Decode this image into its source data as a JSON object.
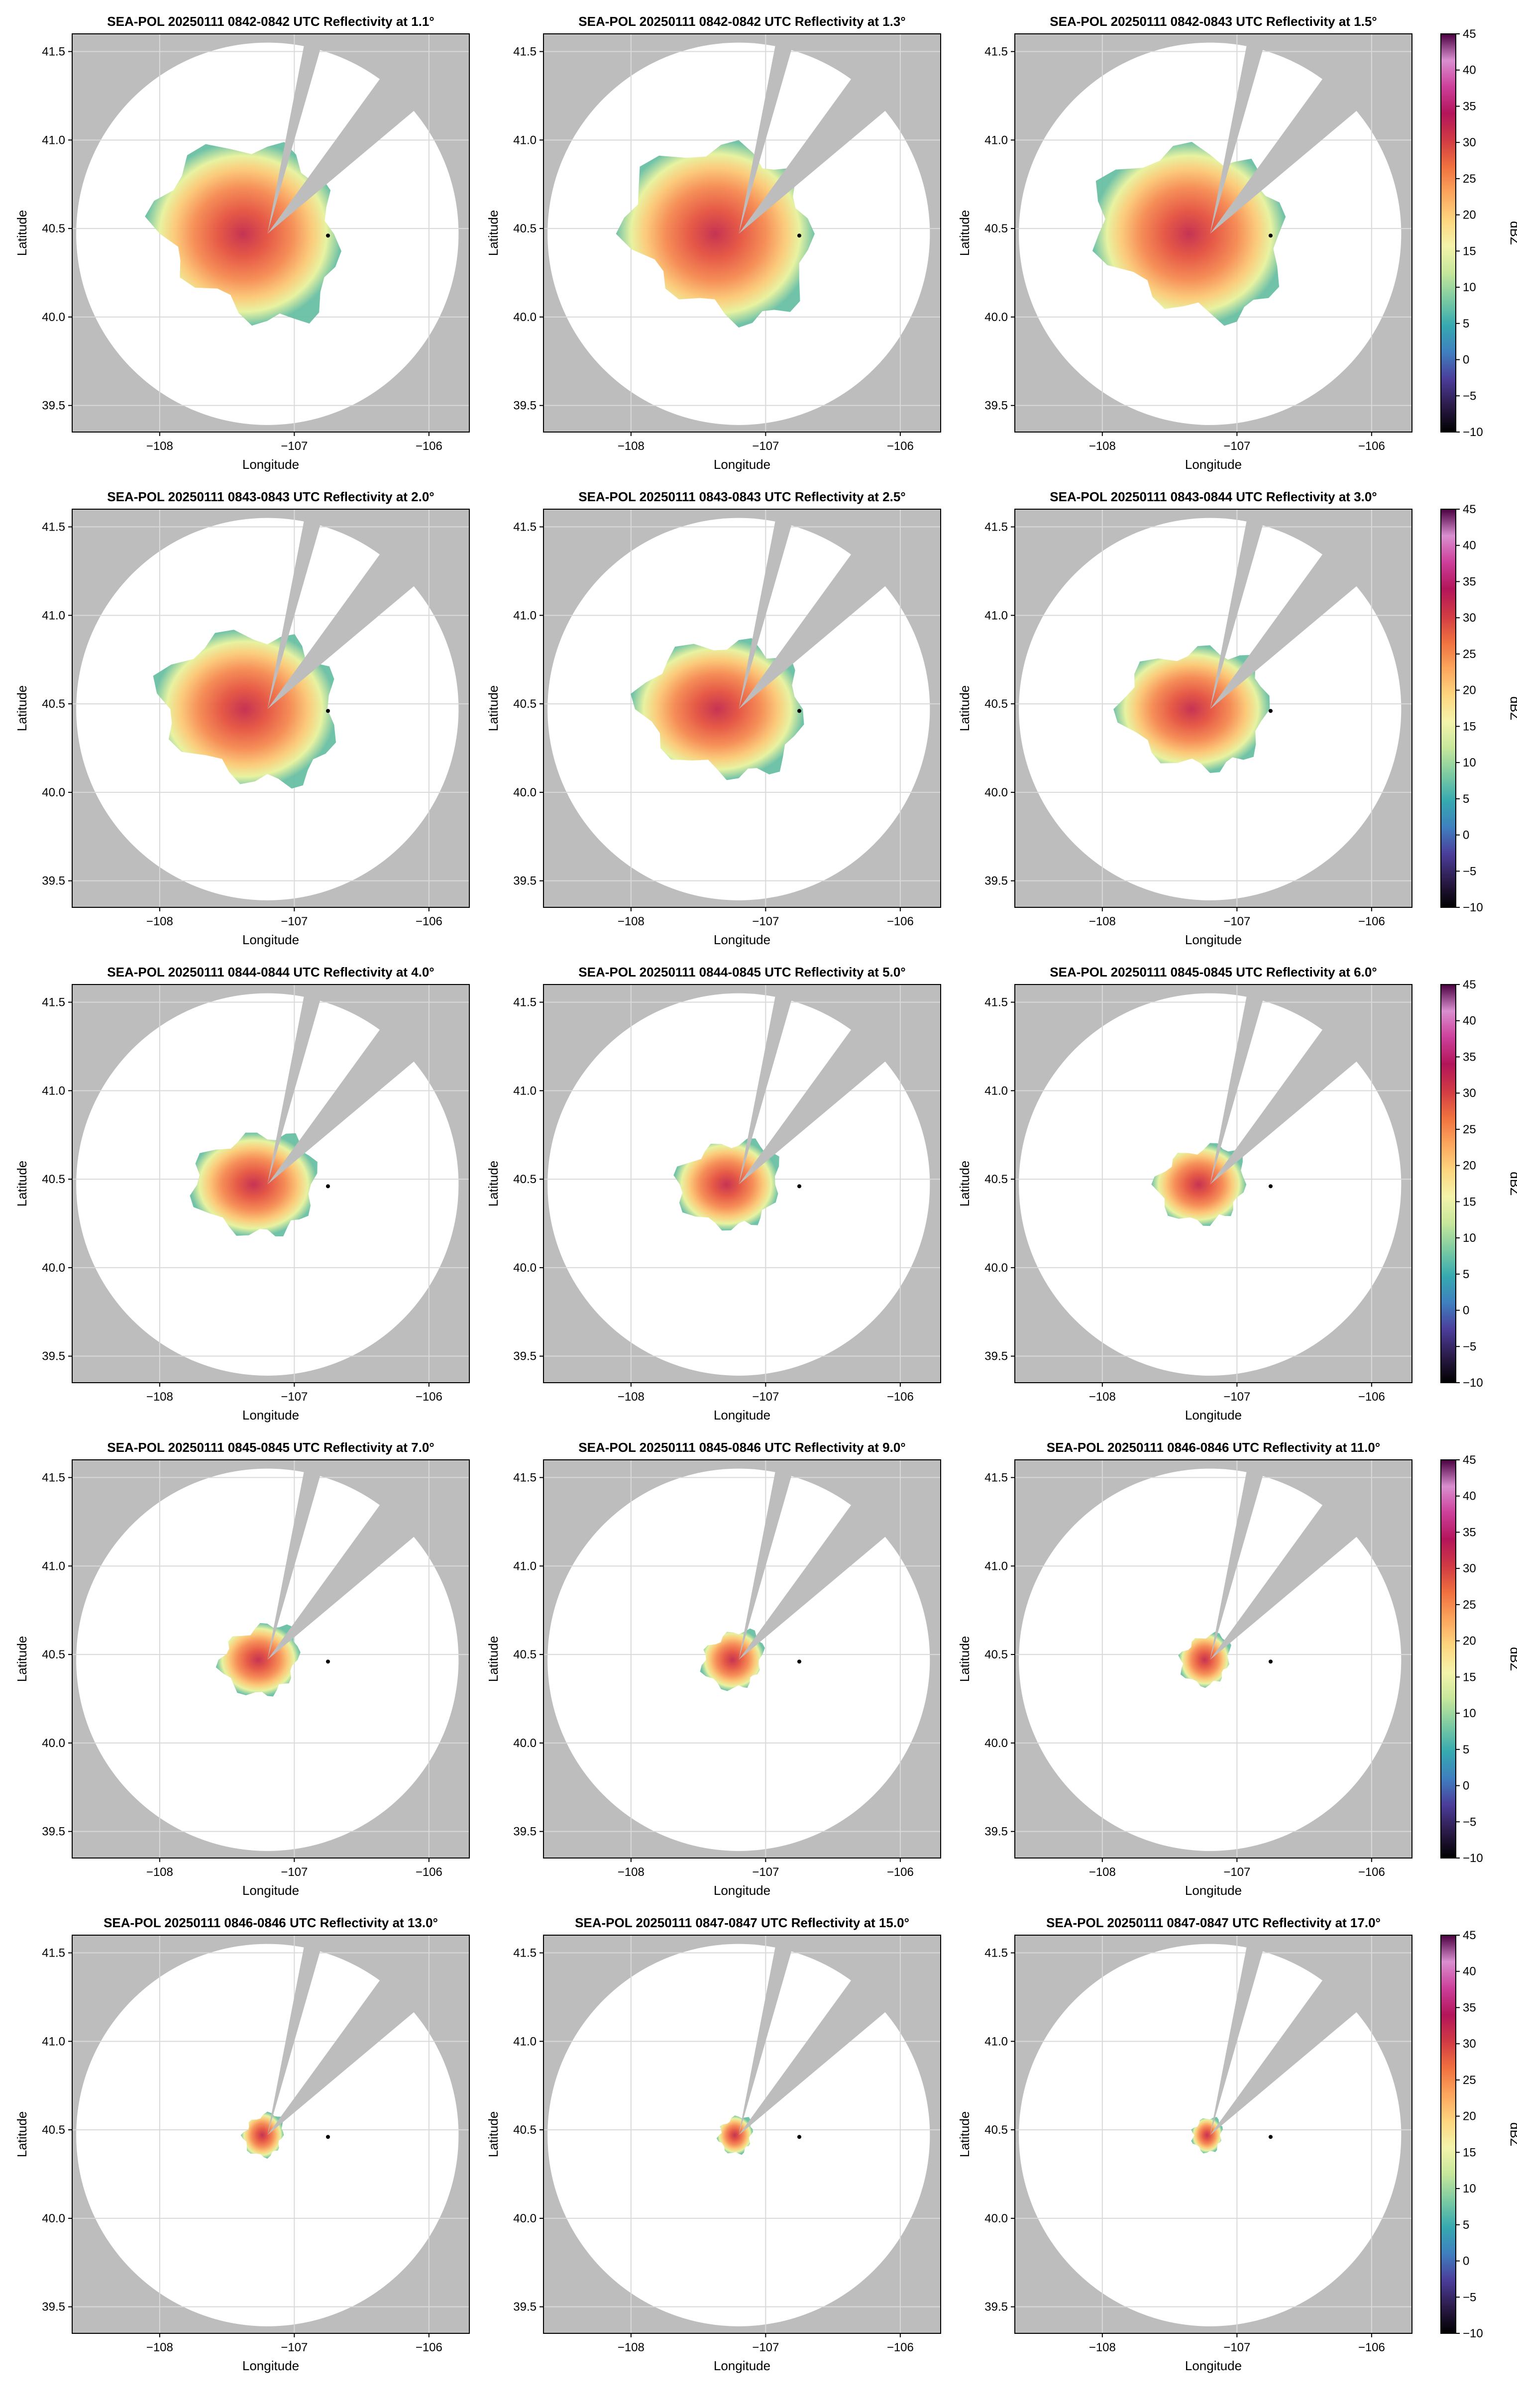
{
  "figure": {
    "site_marker_lon": -106.75,
    "site_marker_lat": 40.46,
    "radar_center_lon": -107.2,
    "radar_center_lat": 40.47,
    "range_radius_deg": 1.42,
    "blocked_sector_deg": [
      [
        11,
        16
      ],
      [
        36,
        50
      ]
    ],
    "background_color": "#bdbdbd",
    "scan_area_color": "#ffffff"
  },
  "colorbar": {
    "label": "dBZ",
    "min": -10,
    "max": 45,
    "ticks": [
      "45",
      "40",
      "35",
      "30",
      "25",
      "20",
      "15",
      "10",
      "5",
      "0",
      "−5",
      "−10"
    ],
    "colors": [
      "#000000",
      "#2b1b4a",
      "#4b3d9a",
      "#3f7fbf",
      "#36a9b0",
      "#7ccba2",
      "#c6e79b",
      "#f4f4aa",
      "#fed57f",
      "#fca55d",
      "#f0703f",
      "#d13a44",
      "#b3155a",
      "#cc3f9a",
      "#d98fd0",
      "#4a0040"
    ]
  },
  "chart_data": [
    {
      "type": "heatmap",
      "title": "SEA-POL 20250111 0842-0842 UTC Reflectivity at 1.1°",
      "elevation_deg": 1.1,
      "echo_extent_deg": 0.6,
      "xlabel": "Longitude",
      "ylabel": "Latitude",
      "xlim": [
        -108.65,
        -105.7
      ],
      "ylim": [
        39.35,
        41.6
      ],
      "xticks": [
        "−108",
        "−107",
        "−106"
      ],
      "yticks": [
        "39.5",
        "40.0",
        "40.5",
        "41.0",
        "41.5"
      ],
      "colorbar": false
    },
    {
      "type": "heatmap",
      "title": "SEA-POL 20250111 0842-0842 UTC Reflectivity at 1.3°",
      "elevation_deg": 1.3,
      "echo_extent_deg": 0.6,
      "xlabel": "Longitude",
      "ylabel": "Latitude",
      "xlim": [
        -108.65,
        -105.7
      ],
      "ylim": [
        39.35,
        41.6
      ],
      "xticks": [
        "−108",
        "−107",
        "−106"
      ],
      "yticks": [
        "39.5",
        "40.0",
        "40.5",
        "41.0",
        "41.5"
      ],
      "colorbar": false
    },
    {
      "type": "heatmap",
      "title": "SEA-POL 20250111 0842-0843 UTC Reflectivity at 1.5°",
      "elevation_deg": 1.5,
      "echo_extent_deg": 0.6,
      "xlabel": "Longitude",
      "ylabel": "Latitude",
      "xlim": [
        -108.65,
        -105.7
      ],
      "ylim": [
        39.35,
        41.6
      ],
      "xticks": [
        "−108",
        "−107",
        "−106"
      ],
      "yticks": [
        "39.5",
        "40.0",
        "40.5",
        "41.0",
        "41.5"
      ],
      "colorbar": true
    },
    {
      "type": "heatmap",
      "title": "SEA-POL 20250111 0843-0843 UTC Reflectivity at 2.0°",
      "elevation_deg": 2.0,
      "echo_extent_deg": 0.55,
      "xlabel": "Longitude",
      "ylabel": "Latitude",
      "xlim": [
        -108.65,
        -105.7
      ],
      "ylim": [
        39.35,
        41.6
      ],
      "xticks": [
        "−108",
        "−107",
        "−106"
      ],
      "yticks": [
        "39.5",
        "40.0",
        "40.5",
        "41.0",
        "41.5"
      ],
      "colorbar": false
    },
    {
      "type": "heatmap",
      "title": "SEA-POL 20250111 0843-0843 UTC Reflectivity at 2.5°",
      "elevation_deg": 2.5,
      "echo_extent_deg": 0.5,
      "xlabel": "Longitude",
      "ylabel": "Latitude",
      "xlim": [
        -108.65,
        -105.7
      ],
      "ylim": [
        39.35,
        41.6
      ],
      "xticks": [
        "−108",
        "−107",
        "−106"
      ],
      "yticks": [
        "39.5",
        "40.0",
        "40.5",
        "41.0",
        "41.5"
      ],
      "colorbar": false
    },
    {
      "type": "heatmap",
      "title": "SEA-POL 20250111 0843-0844 UTC Reflectivity at 3.0°",
      "elevation_deg": 3.0,
      "echo_extent_deg": 0.45,
      "xlabel": "Longitude",
      "ylabel": "Latitude",
      "xlim": [
        -108.65,
        -105.7
      ],
      "ylim": [
        39.35,
        41.6
      ],
      "xticks": [
        "−108",
        "−107",
        "−106"
      ],
      "yticks": [
        "39.5",
        "40.0",
        "40.5",
        "41.0",
        "41.5"
      ],
      "colorbar": true
    },
    {
      "type": "heatmap",
      "title": "SEA-POL 20250111 0844-0844 UTC Reflectivity at 4.0°",
      "elevation_deg": 4.0,
      "echo_extent_deg": 0.38,
      "xlabel": "Longitude",
      "ylabel": "Latitude",
      "xlim": [
        -108.65,
        -105.7
      ],
      "ylim": [
        39.35,
        41.6
      ],
      "xticks": [
        "−108",
        "−107",
        "−106"
      ],
      "yticks": [
        "39.5",
        "40.0",
        "40.5",
        "41.0",
        "41.5"
      ],
      "colorbar": false
    },
    {
      "type": "heatmap",
      "title": "SEA-POL 20250111 0844-0845 UTC Reflectivity at 5.0°",
      "elevation_deg": 5.0,
      "echo_extent_deg": 0.32,
      "xlabel": "Longitude",
      "ylabel": "Latitude",
      "xlim": [
        -108.65,
        -105.7
      ],
      "ylim": [
        39.35,
        41.6
      ],
      "xticks": [
        "−108",
        "−107",
        "−106"
      ],
      "yticks": [
        "39.5",
        "40.0",
        "40.5",
        "41.0",
        "41.5"
      ],
      "colorbar": false
    },
    {
      "type": "heatmap",
      "title": "SEA-POL 20250111 0845-0845 UTC Reflectivity at 6.0°",
      "elevation_deg": 6.0,
      "echo_extent_deg": 0.28,
      "xlabel": "Longitude",
      "ylabel": "Latitude",
      "xlim": [
        -108.65,
        -105.7
      ],
      "ylim": [
        39.35,
        41.6
      ],
      "xticks": [
        "−108",
        "−107",
        "−106"
      ],
      "yticks": [
        "39.5",
        "40.0",
        "40.5",
        "41.0",
        "41.5"
      ],
      "colorbar": true
    },
    {
      "type": "heatmap",
      "title": "SEA-POL 20250111 0845-0845 UTC Reflectivity at 7.0°",
      "elevation_deg": 7.0,
      "echo_extent_deg": 0.25,
      "xlabel": "Longitude",
      "ylabel": "Latitude",
      "xlim": [
        -108.65,
        -105.7
      ],
      "ylim": [
        39.35,
        41.6
      ],
      "xticks": [
        "−108",
        "−107",
        "−106"
      ],
      "yticks": [
        "39.5",
        "40.0",
        "40.5",
        "41.0",
        "41.5"
      ],
      "colorbar": false
    },
    {
      "type": "heatmap",
      "title": "SEA-POL 20250111 0845-0846 UTC Reflectivity at 9.0°",
      "elevation_deg": 9.0,
      "echo_extent_deg": 0.2,
      "xlabel": "Longitude",
      "ylabel": "Latitude",
      "xlim": [
        -108.65,
        -105.7
      ],
      "ylim": [
        39.35,
        41.6
      ],
      "xticks": [
        "−108",
        "−107",
        "−106"
      ],
      "yticks": [
        "39.5",
        "40.0",
        "40.5",
        "41.0",
        "41.5"
      ],
      "colorbar": false
    },
    {
      "type": "heatmap",
      "title": "SEA-POL 20250111 0846-0846 UTC Reflectivity at 11.0°",
      "elevation_deg": 11.0,
      "echo_extent_deg": 0.17,
      "xlabel": "Longitude",
      "ylabel": "Latitude",
      "xlim": [
        -108.65,
        -105.7
      ],
      "ylim": [
        39.35,
        41.6
      ],
      "xticks": [
        "−108",
        "−107",
        "−106"
      ],
      "yticks": [
        "39.5",
        "40.0",
        "40.5",
        "41.0",
        "41.5"
      ],
      "colorbar": true
    },
    {
      "type": "heatmap",
      "title": "SEA-POL 20250111 0846-0846 UTC Reflectivity at 13.0°",
      "elevation_deg": 13.0,
      "echo_extent_deg": 0.14,
      "xlabel": "Longitude",
      "ylabel": "Latitude",
      "xlim": [
        -108.65,
        -105.7
      ],
      "ylim": [
        39.35,
        41.6
      ],
      "xticks": [
        "−108",
        "−107",
        "−106"
      ],
      "yticks": [
        "39.5",
        "40.0",
        "40.5",
        "41.0",
        "41.5"
      ],
      "colorbar": false
    },
    {
      "type": "heatmap",
      "title": "SEA-POL 20250111 0847-0847 UTC Reflectivity at 15.0°",
      "elevation_deg": 15.0,
      "echo_extent_deg": 0.12,
      "xlabel": "Longitude",
      "ylabel": "Latitude",
      "xlim": [
        -108.65,
        -105.7
      ],
      "ylim": [
        39.35,
        41.6
      ],
      "xticks": [
        "−108",
        "−107",
        "−106"
      ],
      "yticks": [
        "39.5",
        "40.0",
        "40.5",
        "41.0",
        "41.5"
      ],
      "colorbar": false
    },
    {
      "type": "heatmap",
      "title": "SEA-POL 20250111 0847-0847 UTC Reflectivity at 17.0°",
      "elevation_deg": 17.0,
      "echo_extent_deg": 0.11,
      "xlabel": "Longitude",
      "ylabel": "Latitude",
      "xlim": [
        -108.65,
        -105.7
      ],
      "ylim": [
        39.35,
        41.6
      ],
      "xticks": [
        "−108",
        "−107",
        "−106"
      ],
      "yticks": [
        "39.5",
        "40.0",
        "40.5",
        "41.0",
        "41.5"
      ],
      "colorbar": true
    }
  ]
}
